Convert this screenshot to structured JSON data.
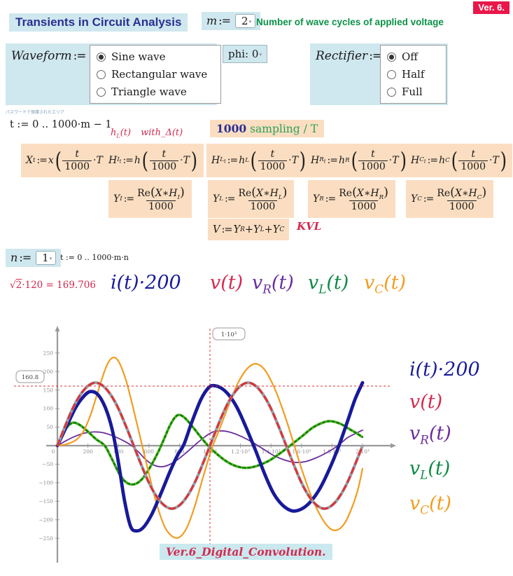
{
  "header": {
    "version": "Ver. 6.",
    "title": "Transients in Circuit Analysis",
    "subtitle": "Number of wave cycles of applied voltage"
  },
  "m_control": {
    "name": "m",
    "assign": ":=",
    "value": "2"
  },
  "n_control": {
    "name": "n",
    "assign": ":=",
    "value": "1"
  },
  "phi_control": {
    "label": "phi:",
    "value": "0"
  },
  "waveform_group": {
    "label": "Waveform",
    "assign": ":=",
    "options": [
      {
        "label": "Sine wave",
        "selected": true
      },
      {
        "label": "Rectangular wave",
        "selected": false
      },
      {
        "label": "Triangle wave",
        "selected": false
      }
    ]
  },
  "rectifier_group": {
    "label": "Rectifier",
    "assign": ":=",
    "options": [
      {
        "label": "Off",
        "selected": true
      },
      {
        "label": "Half",
        "selected": false
      },
      {
        "label": "Full",
        "selected": false
      }
    ]
  },
  "protected_note": "パスワードで保護されたエリア",
  "t_def": "t := 0 .. 1000·m − 1",
  "t_def2": "t := 0 .. 1000·m·n",
  "hl_note": {
    "f": "h",
    "fsub": "L",
    "ftail": "(t)",
    "with": "with_Δ(t)"
  },
  "sampling": {
    "count": "1000",
    "rest": "sampling / T"
  },
  "formulas": {
    "row1": [
      {
        "v": "X",
        "vsub": "t",
        "vsubsub": "",
        "f": "x",
        "fsub": ""
      },
      {
        "v": "H",
        "vsub": "I",
        "vsubsub": "t",
        "f": "h",
        "fsub": ""
      },
      {
        "v": "H",
        "vsub": "L",
        "vsubsub": "t",
        "f": "h",
        "fsub": "L"
      },
      {
        "v": "H",
        "vsub": "R",
        "vsubsub": "t",
        "f": "h",
        "fsub": "R"
      },
      {
        "v": "H",
        "vsub": "C",
        "vsubsub": "t",
        "f": "h",
        "fsub": "C"
      }
    ],
    "arg": {
      "num": "t",
      "den": "1000",
      "mul": "T"
    },
    "row2": [
      {
        "y": "Y",
        "s": "I"
      },
      {
        "y": "Y",
        "s": "L"
      },
      {
        "y": "Y",
        "s": "R"
      },
      {
        "y": "Y",
        "s": "C"
      }
    ],
    "row2_prefix": "Re",
    "row2_den": "1000",
    "kvl": {
      "lhs": "V",
      "terms": [
        "R",
        "L",
        "C"
      ],
      "note": "KVL"
    }
  },
  "rms": {
    "sqrt_of": "2",
    "rest": "·120 = 169.706"
  },
  "labels": [
    {
      "pre": "i",
      "sub": "",
      "tail": "(t)",
      "mult": "·200",
      "color": "#181a99"
    },
    {
      "pre": "v",
      "sub": "",
      "tail": "(t)",
      "mult": "",
      "color": "#d42a4f"
    },
    {
      "pre": "v",
      "sub": "R",
      "tail": "(t)",
      "mult": "",
      "color": "#6b2e9e"
    },
    {
      "pre": "v",
      "sub": "L",
      "tail": "(t)",
      "mult": "",
      "color": "#0e8a45"
    },
    {
      "pre": "v",
      "sub": "C",
      "tail": "(t)",
      "mult": "",
      "color": "#f29c1f"
    }
  ],
  "caption": "Ver.6_Digital_Convolution.",
  "chart_data": {
    "type": "line",
    "title": "",
    "xlim": [
      0,
      2000
    ],
    "ylim": [
      -250,
      250
    ],
    "grid": false,
    "legend_position": "right",
    "x_ticks": [
      {
        "v": 0,
        "l": "0"
      },
      {
        "v": 200,
        "l": "200"
      },
      {
        "v": 400,
        "l": "400"
      },
      {
        "v": 600,
        "l": "600"
      },
      {
        "v": 800,
        "l": "800"
      },
      {
        "v": 1000,
        "l": "1·10³"
      },
      {
        "v": 1200,
        "l": "1.2·10³"
      },
      {
        "v": 1400,
        "l": "1.4·10³"
      },
      {
        "v": 1600,
        "l": "1.6·10³"
      },
      {
        "v": 1800,
        "l": "1.8·10³"
      },
      {
        "v": 2000,
        "l": "2·10³"
      }
    ],
    "y_ticks": [
      250,
      200,
      150,
      100,
      50,
      -50,
      -100,
      -150,
      -200,
      -250
    ],
    "markers": {
      "h": {
        "value": 160.8,
        "label": "160.8"
      },
      "v": {
        "value": 1000,
        "label": "1·10³"
      }
    },
    "series": [
      {
        "name": "vR(t)",
        "color": "#6b2e9e",
        "width": 1.8,
        "dash": null,
        "under": null,
        "points": [
          [
            0,
            0
          ],
          [
            60,
            14
          ],
          [
            120,
            26
          ],
          [
            180,
            34
          ],
          [
            240,
            37
          ],
          [
            300,
            35
          ],
          [
            360,
            27
          ],
          [
            420,
            16
          ],
          [
            480,
            2
          ],
          [
            530,
            -16
          ],
          [
            580,
            -38
          ],
          [
            630,
            -52
          ],
          [
            680,
            -57
          ],
          [
            730,
            -52
          ],
          [
            790,
            -37
          ],
          [
            850,
            -17
          ],
          [
            910,
            5
          ],
          [
            970,
            25
          ],
          [
            1020,
            37
          ],
          [
            1075,
            40
          ],
          [
            1135,
            36
          ],
          [
            1205,
            25
          ],
          [
            1275,
            10
          ],
          [
            1345,
            -8
          ],
          [
            1415,
            -26
          ],
          [
            1485,
            -38
          ],
          [
            1555,
            -45
          ],
          [
            1625,
            -43
          ],
          [
            1695,
            -33
          ],
          [
            1765,
            -19
          ],
          [
            1835,
            -1
          ],
          [
            1900,
            21
          ],
          [
            1950,
            32
          ],
          [
            2000,
            42
          ]
        ]
      },
      {
        "name": "vL(t)",
        "color": "#117a11",
        "width": 2.3,
        "dash": "3 4",
        "under": "#55bb22",
        "points": [
          [
            0,
            0
          ],
          [
            40,
            36
          ],
          [
            80,
            57
          ],
          [
            110,
            62
          ],
          [
            150,
            55
          ],
          [
            200,
            38
          ],
          [
            255,
            17
          ],
          [
            310,
            0
          ],
          [
            360,
            -38
          ],
          [
            410,
            -79
          ],
          [
            455,
            -100
          ],
          [
            505,
            -104
          ],
          [
            555,
            -90
          ],
          [
            605,
            -60
          ],
          [
            655,
            -22
          ],
          [
            695,
            14
          ],
          [
            735,
            52
          ],
          [
            770,
            76
          ],
          [
            800,
            83
          ],
          [
            840,
            73
          ],
          [
            890,
            49
          ],
          [
            940,
            23
          ],
          [
            990,
            -1
          ],
          [
            1050,
            -24
          ],
          [
            1110,
            -43
          ],
          [
            1170,
            -55
          ],
          [
            1235,
            -60
          ],
          [
            1305,
            -55
          ],
          [
            1385,
            -41
          ],
          [
            1465,
            -19
          ],
          [
            1535,
            3
          ],
          [
            1605,
            26
          ],
          [
            1675,
            49
          ],
          [
            1745,
            63
          ],
          [
            1795,
            66
          ],
          [
            1855,
            59
          ],
          [
            1905,
            47
          ],
          [
            1955,
            35
          ],
          [
            2000,
            23
          ]
        ]
      },
      {
        "name": "vC(t)",
        "color": "#f29c1f",
        "width": 2.2,
        "dash": null,
        "under": null,
        "points": [
          [
            0,
            0
          ],
          [
            60,
            4
          ],
          [
            120,
            15
          ],
          [
            170,
            38
          ],
          [
            220,
            86
          ],
          [
            270,
            152
          ],
          [
            320,
            213
          ],
          [
            360,
            237
          ],
          [
            400,
            228
          ],
          [
            450,
            176
          ],
          [
            500,
            96
          ],
          [
            550,
            10
          ],
          [
            600,
            -76
          ],
          [
            650,
            -156
          ],
          [
            700,
            -216
          ],
          [
            750,
            -244
          ],
          [
            800,
            -247
          ],
          [
            850,
            -220
          ],
          [
            900,
            -164
          ],
          [
            950,
            -92
          ],
          [
            1010,
            -10
          ],
          [
            1060,
            42
          ],
          [
            1120,
            106
          ],
          [
            1180,
            166
          ],
          [
            1240,
            206
          ],
          [
            1300,
            221
          ],
          [
            1360,
            204
          ],
          [
            1420,
            158
          ],
          [
            1480,
            94
          ],
          [
            1540,
            18
          ],
          [
            1600,
            -62
          ],
          [
            1660,
            -132
          ],
          [
            1720,
            -186
          ],
          [
            1780,
            -221
          ],
          [
            1830,
            -228
          ],
          [
            1880,
            -211
          ],
          [
            1930,
            -168
          ],
          [
            1970,
            -118
          ],
          [
            2000,
            -62
          ]
        ]
      },
      {
        "name": "i(t)·200",
        "color": "#181a99",
        "width": 4.8,
        "dash": null,
        "under": null,
        "points": [
          [
            0,
            0
          ],
          [
            60,
            52
          ],
          [
            120,
            103
          ],
          [
            170,
            132
          ],
          [
            215,
            146
          ],
          [
            265,
            138
          ],
          [
            315,
            102
          ],
          [
            360,
            42
          ],
          [
            400,
            -45
          ],
          [
            440,
            -148
          ],
          [
            480,
            -218
          ],
          [
            520,
            -230
          ],
          [
            565,
            -220
          ],
          [
            620,
            -184
          ],
          [
            680,
            -128
          ],
          [
            740,
            -68
          ],
          [
            790,
            -24
          ],
          [
            830,
            4
          ],
          [
            880,
            62
          ],
          [
            940,
            124
          ],
          [
            990,
            156
          ],
          [
            1025,
            162
          ],
          [
            1075,
            155
          ],
          [
            1125,
            136
          ],
          [
            1180,
            101
          ],
          [
            1240,
            46
          ],
          [
            1300,
            -14
          ],
          [
            1360,
            -78
          ],
          [
            1420,
            -131
          ],
          [
            1480,
            -162
          ],
          [
            1540,
            -176
          ],
          [
            1600,
            -171
          ],
          [
            1660,
            -151
          ],
          [
            1720,
            -116
          ],
          [
            1780,
            -66
          ],
          [
            1840,
            -6
          ],
          [
            1900,
            64
          ],
          [
            1950,
            124
          ],
          [
            2000,
            170
          ]
        ]
      },
      {
        "name": "v(t) over V (KVL)",
        "color": "#e03131",
        "width": 2.8,
        "dash": "8 6",
        "under": "#98a0ab",
        "points": [
          [
            0,
            0
          ],
          [
            50,
            52
          ],
          [
            100,
            100
          ],
          [
            150,
            137
          ],
          [
            200,
            161
          ],
          [
            250,
            170
          ],
          [
            300,
            161
          ],
          [
            350,
            137
          ],
          [
            400,
            100
          ],
          [
            450,
            52
          ],
          [
            500,
            0
          ],
          [
            550,
            -52
          ],
          [
            600,
            -100
          ],
          [
            650,
            -137
          ],
          [
            700,
            -161
          ],
          [
            750,
            -170
          ],
          [
            800,
            -161
          ],
          [
            850,
            -137
          ],
          [
            900,
            -100
          ],
          [
            950,
            -52
          ],
          [
            1000,
            0
          ],
          [
            1050,
            52
          ],
          [
            1100,
            100
          ],
          [
            1150,
            137
          ],
          [
            1200,
            161
          ],
          [
            1250,
            170
          ],
          [
            1300,
            161
          ],
          [
            1350,
            137
          ],
          [
            1400,
            100
          ],
          [
            1450,
            52
          ],
          [
            1500,
            0
          ],
          [
            1550,
            -52
          ],
          [
            1600,
            -100
          ],
          [
            1650,
            -137
          ],
          [
            1700,
            -161
          ],
          [
            1750,
            -170
          ],
          [
            1800,
            -161
          ],
          [
            1850,
            -137
          ],
          [
            1900,
            -100
          ],
          [
            1950,
            -52
          ],
          [
            2000,
            0
          ]
        ]
      }
    ]
  }
}
